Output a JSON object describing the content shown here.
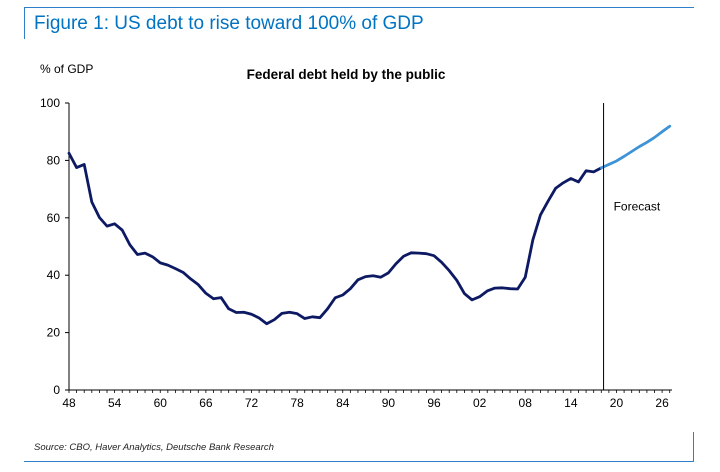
{
  "figure_title": "Figure 1: US debt to rise toward 100% of GDP",
  "source": "Source: CBO, Haver Analytics, Deutsche Bank Research",
  "colors": {
    "historical": "#0d1a63",
    "forecast": "#3d93d6",
    "frame": "#2f7fc9",
    "title": "#0073c2"
  },
  "chart_data": {
    "type": "line",
    "title": "Federal debt held by the public",
    "ylabel": "% of GDP",
    "xlabel": "",
    "xlim": [
      1948,
      2027.3
    ],
    "ylim": [
      0,
      100
    ],
    "y_ticks": [
      0,
      20,
      40,
      60,
      80,
      100
    ],
    "x_ticks": [
      1948,
      1954,
      1960,
      1966,
      1972,
      1978,
      1984,
      1990,
      1996,
      2002,
      2008,
      2014,
      2020,
      2026
    ],
    "x_tick_labels": [
      "48",
      "54",
      "60",
      "66",
      "72",
      "78",
      "84",
      "90",
      "96",
      "02",
      "08",
      "14",
      "20",
      "26"
    ],
    "grid": false,
    "annotations": [
      {
        "text": "Forecast",
        "x": 2018.3
      }
    ],
    "series": [
      {
        "x": [
          1948,
          1949,
          1950,
          1951,
          1952,
          1953,
          1954,
          1955,
          1956,
          1957,
          1958,
          1959,
          1960,
          1961,
          1962,
          1963,
          1964,
          1965,
          1966,
          1967,
          1968,
          1969,
          1970,
          1971,
          1972,
          1973,
          1974,
          1975,
          1976,
          1977,
          1978,
          1979,
          1980,
          1981,
          1982,
          1983,
          1984,
          1985,
          1986,
          1987,
          1988,
          1989,
          1990,
          1991,
          1992,
          1993,
          1994,
          1995,
          1996,
          1997,
          1998,
          1999,
          2000,
          2001,
          2002,
          2003,
          2004,
          2005,
          2006,
          2007,
          2008,
          2009,
          2010,
          2011,
          2012,
          2013,
          2014,
          2015,
          2016,
          2017,
          2018
        ],
        "values": [
          82.5,
          77.5,
          78.6,
          65.5,
          60.1,
          57.1,
          57.9,
          55.7,
          50.6,
          47.2,
          47.7,
          46.4,
          44.3,
          43.5,
          42.3,
          41.0,
          38.7,
          36.7,
          33.7,
          31.8,
          32.2,
          28.3,
          27.0,
          27.1,
          26.4,
          25.1,
          23.1,
          24.5,
          26.7,
          27.1,
          26.6,
          24.9,
          25.5,
          25.2,
          28.3,
          32.1,
          33.1,
          35.3,
          38.4,
          39.5,
          39.8,
          39.3,
          40.8,
          44.0,
          46.6,
          47.8,
          47.7,
          47.5,
          46.8,
          44.5,
          41.6,
          38.2,
          33.6,
          31.4,
          32.5,
          34.5,
          35.5,
          35.6,
          35.3,
          35.2,
          39.3,
          52.3,
          61.0,
          65.8,
          70.3,
          72.2,
          73.7,
          72.5,
          76.4,
          76.0,
          77.4
        ],
        "style": "historical"
      },
      {
        "x": [
          2018,
          2019,
          2020,
          2021,
          2022,
          2023,
          2024,
          2025,
          2026,
          2027
        ],
        "values": [
          77.4,
          78.6,
          79.8,
          81.4,
          83.1,
          84.8,
          86.3,
          88.0,
          90.0,
          91.9
        ],
        "style": "forecast"
      }
    ]
  }
}
